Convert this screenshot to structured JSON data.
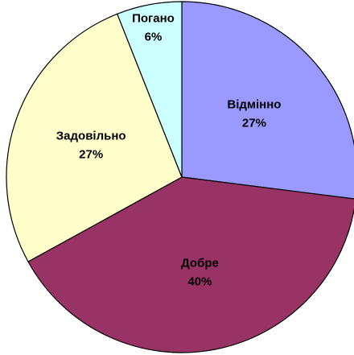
{
  "chart_data": {
    "type": "pie",
    "categories": [
      "Відмінно",
      "Добре",
      "Задовільно",
      "Погано"
    ],
    "values": [
      27,
      40,
      27,
      6
    ],
    "value_labels": [
      "27%",
      "40%",
      "27%",
      "6%"
    ],
    "colors": [
      "#9999ff",
      "#993366",
      "#ffffcc",
      "#ccffff"
    ]
  }
}
